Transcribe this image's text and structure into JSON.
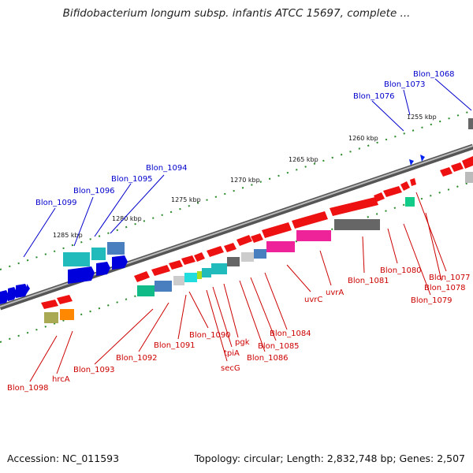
{
  "title": "Bifidobacterium longum subsp. infantis ATCC 15697, complete ...",
  "footer": {
    "accession": "Accession: NC_011593",
    "summary": "Topology: circular; Length: 2,832,748 bp; Genes: 2,507"
  },
  "colors": {
    "forward_label": "#0000cc",
    "reverse_label": "#cc0000",
    "backbone": "#888888",
    "tick": "#228822"
  },
  "scale_ticks": [
    "1255 kbp",
    "1260 kbp",
    "1265 kbp",
    "1270 kbp",
    "1275 kbp",
    "1280 kbp",
    "1285 kbp"
  ],
  "forward_genes": [
    "Blon_1068",
    "Blon_1073",
    "Blon_1076",
    "Blon_1094",
    "Blon_1095",
    "Blon_1096",
    "Blon_1099"
  ],
  "reverse_genes": [
    "Blon_1077",
    "Blon_1078",
    "Blon_1079",
    "Blon_1080",
    "Blon_1081",
    "uvrA",
    "uvrC",
    "Blon_1084",
    "Blon_1085",
    "Blon_1086",
    "pgk",
    "tpiA",
    "secG",
    "Blon_1090",
    "Blon_1091",
    "Blon_1092",
    "Blon_1093",
    "hrcA",
    "Blon_1098"
  ]
}
